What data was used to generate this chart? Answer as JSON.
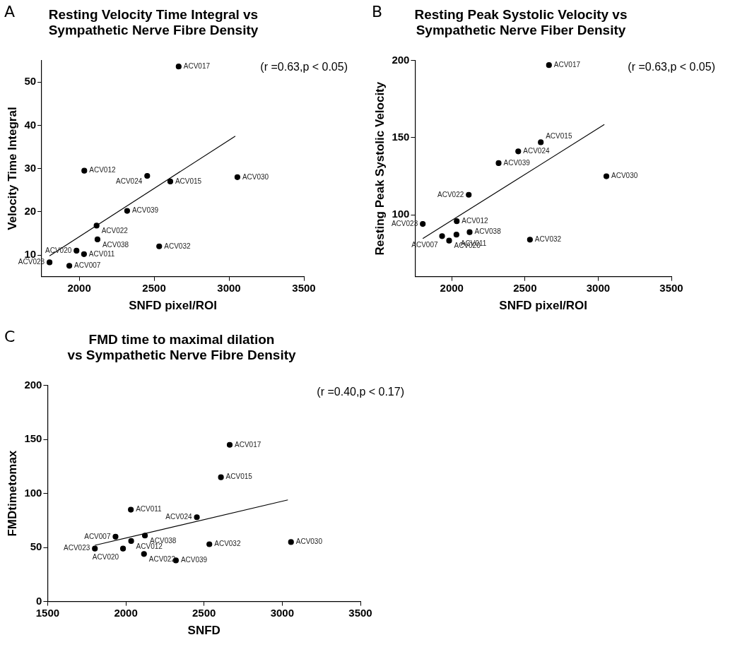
{
  "chart_data": [
    {
      "type": "scatter",
      "title": "Resting Velocity Time Integral vs\nSympathetic Nerve Fibre Density",
      "xlabel": "SNFD pixel/ROI",
      "ylabel": "Velocity Time Integral",
      "xlim": [
        1750,
        3500
      ],
      "xticks": [
        2000,
        2500,
        3000,
        3500
      ],
      "ylim": [
        5,
        55
      ],
      "yticks": [
        10,
        20,
        30,
        40,
        50
      ],
      "grid": false,
      "legend": false,
      "marker": "circle",
      "series": [
        {
          "type": "scatter",
          "color": "#000000",
          "x": [
            2664,
            2034,
            2454,
            2608,
            3056,
            2320,
            2116,
            2122,
            2534,
            1982,
            2032,
            1802,
            1934
          ],
          "values": [
            53.6,
            29.5,
            28.3,
            27.0,
            28.0,
            20.2,
            16.8,
            13.6,
            12.0,
            11.0,
            10.2,
            8.3,
            7.5
          ]
        },
        {
          "type": "line",
          "color": "#000000",
          "marker": "none",
          "x": [
            1802,
            3042
          ],
          "values": [
            9.8,
            37.5
          ]
        }
      ],
      "annotations": [
        "A",
        "(r =0.63,p < 0.05)",
        {
          "text": "ACV017",
          "x": 2664,
          "y": 53.6
        },
        {
          "text": "ACV012",
          "x": 2034,
          "y": 29.5
        },
        {
          "text": "ACV024",
          "x": 2454,
          "y": 28.3
        },
        {
          "text": "ACV015",
          "x": 2608,
          "y": 27.0
        },
        {
          "text": "ACV030",
          "x": 3056,
          "y": 28.0
        },
        {
          "text": "ACV039",
          "x": 2320,
          "y": 20.2
        },
        {
          "text": "ACV022",
          "x": 2116,
          "y": 16.8
        },
        {
          "text": "ACV038",
          "x": 2122,
          "y": 13.6
        },
        {
          "text": "ACV032",
          "x": 2534,
          "y": 12.0
        },
        {
          "text": "ACV020",
          "x": 1982,
          "y": 11.0
        },
        {
          "text": "ACV011",
          "x": 2032,
          "y": 10.2
        },
        {
          "text": "ACV023",
          "x": 1802,
          "y": 8.3
        },
        {
          "text": "ACV007",
          "x": 1934,
          "y": 7.5
        }
      ]
    },
    {
      "type": "scatter",
      "title": "Resting Peak Systolic Velocity vs\nSympathetic Nerve Fiber Density",
      "xlabel": "SNFD pixel/ROI",
      "ylabel": "Resting Peak Systolic Velocity",
      "xlim": [
        1750,
        3500
      ],
      "xticks": [
        2000,
        2500,
        3000,
        3500
      ],
      "ylim": [
        60,
        200
      ],
      "yticks": [
        100,
        150,
        200
      ],
      "grid": false,
      "legend": false,
      "marker": "circle",
      "series": [
        {
          "type": "scatter",
          "color": "#000000",
          "x": [
            2664,
            2608,
            2454,
            2320,
            3056,
            2116,
            1802,
            2034,
            2122,
            2032,
            1934,
            1982,
            2534
          ],
          "values": [
            197,
            147,
            141.1,
            133.5,
            125,
            113,
            94.1,
            95.9,
            88.8,
            87.2,
            86.2,
            83.3,
            83.9
          ]
        },
        {
          "type": "line",
          "color": "#000000",
          "marker": "none",
          "x": [
            1802,
            3042
          ],
          "values": [
            84.6,
            158.5
          ]
        }
      ],
      "annotations": [
        "B",
        "(r =0.63,p < 0.05)",
        {
          "text": "ACV017",
          "x": 2664,
          "y": 197
        },
        {
          "text": "ACV015",
          "x": 2608,
          "y": 147
        },
        {
          "text": "ACV024",
          "x": 2454,
          "y": 141.1
        },
        {
          "text": "ACV039",
          "x": 2320,
          "y": 133.5
        },
        {
          "text": "ACV030",
          "x": 3056,
          "y": 125
        },
        {
          "text": "ACV022",
          "x": 2116,
          "y": 113
        },
        {
          "text": "ACV023",
          "x": 1802,
          "y": 94.1
        },
        {
          "text": "ACV012",
          "x": 2034,
          "y": 95.9
        },
        {
          "text": "ACV038",
          "x": 2122,
          "y": 88.8
        },
        {
          "text": "ACV011",
          "x": 2032,
          "y": 87.2
        },
        {
          "text": "ACV007",
          "x": 1934,
          "y": 86.2
        },
        {
          "text": "ACV020",
          "x": 1982,
          "y": 83.3
        },
        {
          "text": "ACV032",
          "x": 2534,
          "y": 83.9
        }
      ]
    },
    {
      "type": "scatter",
      "title": "FMD time to maximal dilation\nvs Sympathetic Nerve Fibre Density",
      "xlabel": "SNFD",
      "ylabel": "FMDtimetomax",
      "xlim": [
        1500,
        3500
      ],
      "xticks": [
        1500,
        2000,
        2500,
        3000,
        3500
      ],
      "ylim": [
        0,
        200
      ],
      "yticks": [
        0,
        50,
        100,
        150,
        200
      ],
      "grid": false,
      "legend": false,
      "marker": "circle",
      "series": [
        {
          "type": "scatter",
          "color": "#000000",
          "x": [
            2664,
            2608,
            2032,
            2454,
            1934,
            2122,
            2034,
            1802,
            1982,
            2116,
            2320,
            2534,
            3056
          ],
          "values": [
            145,
            115,
            85,
            78,
            60,
            61,
            56,
            49,
            49,
            44,
            38,
            53,
            55
          ]
        },
        {
          "type": "line",
          "color": "#000000",
          "marker": "none",
          "x": [
            1802,
            3036
          ],
          "values": [
            52,
            94
          ]
        }
      ],
      "annotations": [
        "C",
        "(r =0.40,p < 0.17)",
        {
          "text": "ACV017",
          "x": 2664,
          "y": 145
        },
        {
          "text": "ACV015",
          "x": 2608,
          "y": 115
        },
        {
          "text": "ACV011",
          "x": 2032,
          "y": 85
        },
        {
          "text": "ACV024",
          "x": 2454,
          "y": 78
        },
        {
          "text": "ACV007",
          "x": 1934,
          "y": 60
        },
        {
          "text": "ACV038",
          "x": 2122,
          "y": 61
        },
        {
          "text": "ACV012",
          "x": 2034,
          "y": 56
        },
        {
          "text": "ACV023",
          "x": 1802,
          "y": 49
        },
        {
          "text": "ACV020",
          "x": 1982,
          "y": 49
        },
        {
          "text": "ACV022",
          "x": 2116,
          "y": 44
        },
        {
          "text": "ACV039",
          "x": 2320,
          "y": 38
        },
        {
          "text": "ACV032",
          "x": 2534,
          "y": 53
        },
        {
          "text": "ACV030",
          "x": 3056,
          "y": 55
        }
      ]
    }
  ]
}
